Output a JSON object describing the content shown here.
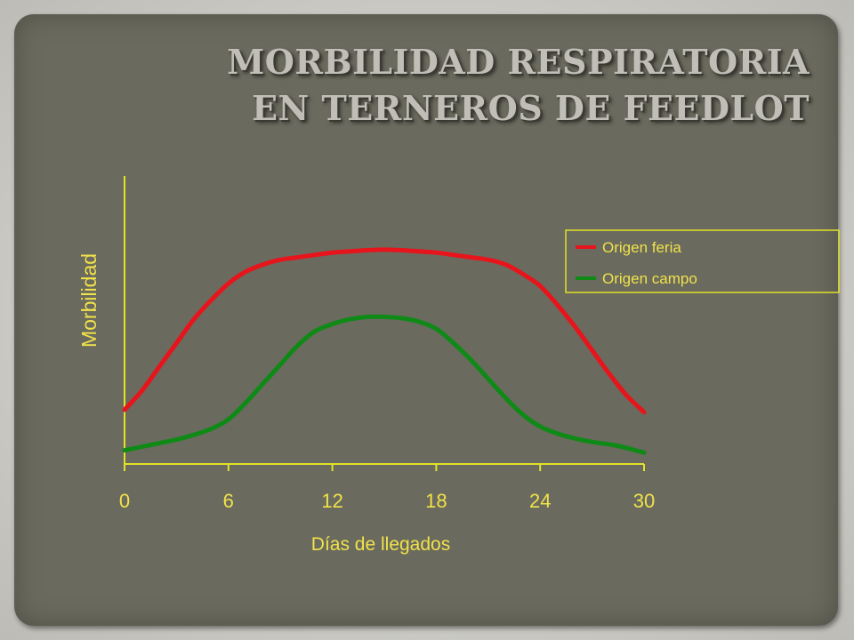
{
  "slide": {
    "title_line1": "MORBILIDAD RESPIRATORIA",
    "title_line2": "EN TERNEROS DE FEEDLOT"
  },
  "chart_data": {
    "type": "line",
    "xlabel": "Días de llegados",
    "ylabel": "Morbilidad",
    "x_ticks": [
      0,
      6,
      12,
      18,
      24,
      30
    ],
    "xlim": [
      0,
      30
    ],
    "ylim": [
      0,
      100
    ],
    "grid": false,
    "y_tick_labels": false,
    "legend_position": "top-right",
    "series": [
      {
        "name": "Origen feria",
        "color": "#e8141b",
        "x": [
          0,
          1,
          2,
          3,
          4,
          5,
          6,
          7,
          8,
          9,
          10,
          11,
          12,
          13,
          14,
          15,
          16,
          17,
          18,
          19,
          20,
          21,
          22,
          23,
          24,
          25,
          26,
          27,
          28,
          29,
          30
        ],
        "y": [
          22,
          30,
          40,
          50,
          60,
          68,
          75,
          80,
          83,
          85,
          86,
          87,
          88,
          88.5,
          89,
          89.2,
          89,
          88.5,
          88,
          87,
          86,
          85,
          83,
          79,
          74,
          66,
          57,
          47,
          37,
          28,
          21
        ]
      },
      {
        "name": "Origen campo",
        "color": "#0f8a16",
        "x": [
          0,
          1,
          2,
          3,
          4,
          5,
          6,
          7,
          8,
          9,
          10,
          11,
          12,
          13,
          14,
          15,
          16,
          17,
          18,
          19,
          20,
          21,
          22,
          23,
          24,
          25,
          26,
          27,
          28,
          29,
          30
        ],
        "y": [
          5,
          6.5,
          8,
          9.5,
          11.5,
          14,
          18,
          25,
          33,
          41,
          49,
          55,
          58,
          60,
          61,
          61,
          60.5,
          59,
          56,
          50,
          43,
          35,
          27,
          20,
          15,
          12,
          10,
          8.5,
          7.5,
          6,
          4
        ]
      }
    ]
  }
}
